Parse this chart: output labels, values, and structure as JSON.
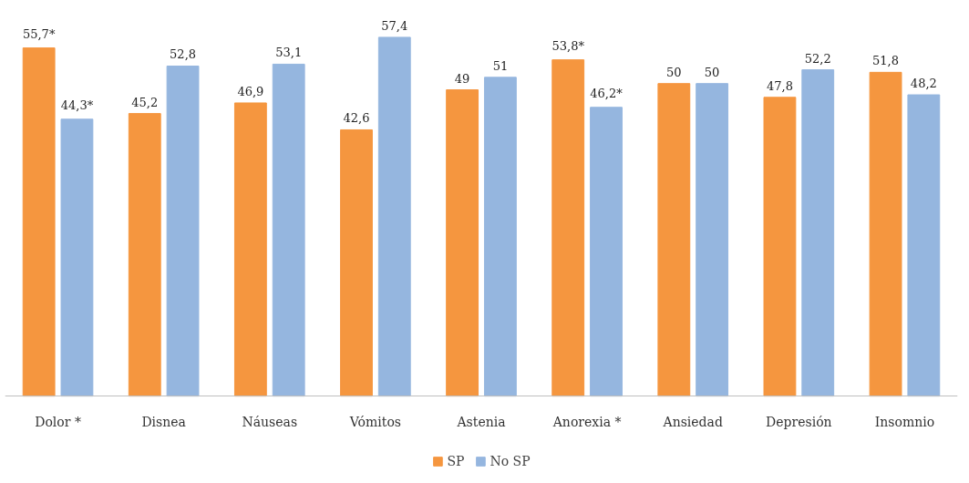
{
  "chart_data": {
    "type": "bar",
    "categories": [
      "Dolor *",
      "Disnea",
      "Náuseas",
      "Vómitos",
      "Astenia",
      "Anorexia *",
      "Ansiedad",
      "Depresión",
      "Insomnio"
    ],
    "series": [
      {
        "name": "SP",
        "color": "#f5963f",
        "values": [
          55.7,
          45.2,
          46.9,
          42.6,
          49,
          53.8,
          50,
          47.8,
          51.8
        ],
        "value_labels": [
          "55,7*",
          "45,2",
          "46,9",
          "42,6",
          "49",
          "53,8*",
          "50",
          "47,8",
          "51,8"
        ]
      },
      {
        "name": "No SP",
        "color": "#95b6df",
        "values": [
          44.3,
          52.8,
          53.1,
          57.4,
          51,
          46.2,
          50,
          52.2,
          48.2
        ],
        "value_labels": [
          "44,3*",
          "52,8",
          "53,1",
          "57,4",
          "51",
          "46,2*",
          "50",
          "52,2",
          "48,2"
        ]
      }
    ],
    "legend": "bottom"
  }
}
